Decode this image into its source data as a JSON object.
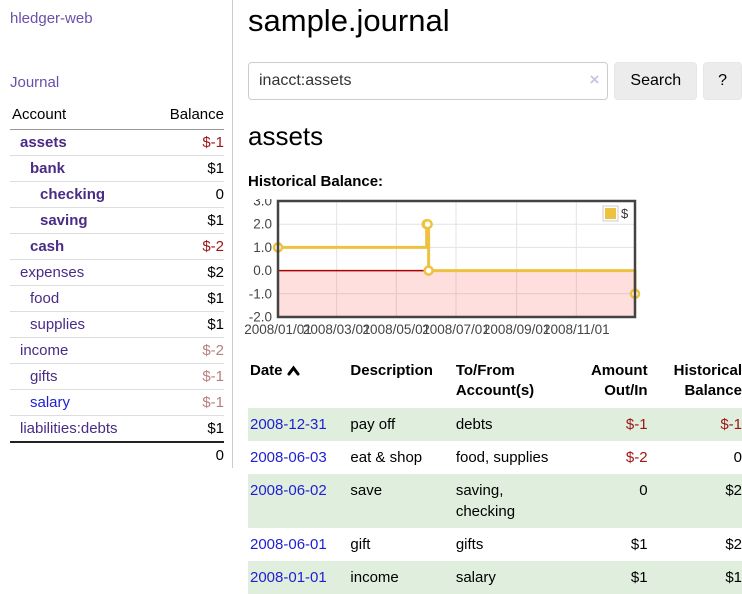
{
  "app": {
    "title": "hledger-web"
  },
  "sidebar": {
    "journal_link": "Journal",
    "accounts_table": {
      "header_account": "Account",
      "header_balance": "Balance",
      "rows": [
        {
          "account": "assets",
          "balance": "$-1",
          "depth": 1,
          "bold": true,
          "balance_style": "neg",
          "link_blue": false
        },
        {
          "account": "bank",
          "balance": "$1",
          "depth": 2,
          "bold": true,
          "balance_style": "",
          "link_blue": false
        },
        {
          "account": "checking",
          "balance": "0",
          "depth": 3,
          "bold": true,
          "balance_style": "",
          "link_blue": false
        },
        {
          "account": "saving",
          "balance": "$1",
          "depth": 3,
          "bold": true,
          "balance_style": "",
          "link_blue": false
        },
        {
          "account": "cash",
          "balance": "$-2",
          "depth": 2,
          "bold": true,
          "balance_style": "neg",
          "link_blue": false
        },
        {
          "account": "expenses",
          "balance": "$2",
          "depth": 1,
          "bold": false,
          "balance_style": "",
          "link_blue": false
        },
        {
          "account": "food",
          "balance": "$1",
          "depth": 2,
          "bold": false,
          "balance_style": "",
          "link_blue": false
        },
        {
          "account": "supplies",
          "balance": "$1",
          "depth": 2,
          "bold": false,
          "balance_style": "",
          "link_blue": false
        },
        {
          "account": "income",
          "balance": "$-2",
          "depth": 1,
          "bold": false,
          "balance_style": "negsoft",
          "link_blue": false
        },
        {
          "account": "gifts",
          "balance": "$-1",
          "depth": 2,
          "bold": false,
          "balance_style": "negsoft",
          "link_blue": false
        },
        {
          "account": "salary",
          "balance": "$-1",
          "depth": 2,
          "bold": false,
          "balance_style": "negsoft",
          "link_blue": true
        },
        {
          "account": "liabilities:debts",
          "balance": "$1",
          "depth": 1,
          "bold": false,
          "balance_style": "",
          "link_blue": false
        }
      ],
      "total": "0"
    }
  },
  "main": {
    "title": "sample.journal",
    "search": {
      "value": "inacct:assets",
      "clear_icon": "×",
      "button_label": "Search",
      "help_label": "?"
    },
    "account_heading": "assets",
    "chart_label": "Historical Balance:",
    "register": {
      "headers": {
        "date": "Date",
        "description": "Description",
        "accounts": "To/From Account(s)",
        "amount": "Amount Out/In",
        "balance": "Historical Balance"
      },
      "sort": {
        "column": "date",
        "direction": "ascending"
      },
      "rows": [
        {
          "date": "2008-12-31",
          "description": "pay off",
          "accounts": "debts",
          "amount": "$-1",
          "balance": "$-1"
        },
        {
          "date": "2008-06-03",
          "description": "eat & shop",
          "accounts": "food, supplies",
          "amount": "$-2",
          "balance": "0"
        },
        {
          "date": "2008-06-02",
          "description": "save",
          "accounts": "saving, checking",
          "amount": "0",
          "balance": "$2"
        },
        {
          "date": "2008-06-01",
          "description": "gift",
          "accounts": "gifts",
          "amount": "$1",
          "balance": "$2"
        },
        {
          "date": "2008-01-01",
          "description": "income",
          "accounts": "salary",
          "amount": "$1",
          "balance": "$1"
        }
      ]
    }
  },
  "chart_data": {
    "type": "line",
    "title": "Historical Balance",
    "steps": true,
    "series": [
      {
        "name": "$",
        "color": "#EDC240",
        "points": [
          [
            "2008-01-01",
            1
          ],
          [
            "2008-06-01",
            2
          ],
          [
            "2008-06-02",
            2
          ],
          [
            "2008-06-03",
            0
          ],
          [
            "2008-12-31",
            -1
          ]
        ]
      }
    ],
    "x_range": [
      "2008-01-01",
      "2008-12-31"
    ],
    "x_ticks": [
      "2008/01/01",
      "2008/03/01",
      "2008/05/01",
      "2008/07/01",
      "2008/09/01",
      "2008/11/01"
    ],
    "y_ticks": [
      3.0,
      2.0,
      1.0,
      0.0,
      -1.0,
      -2.0
    ],
    "ylim": [
      -2,
      3
    ],
    "grid": true,
    "legend_position": "top-right",
    "colors": {
      "grid_line": "#e3e3e3",
      "plot_border": "#434343",
      "zero_line": "#aa0000",
      "negative_region": "rgba(255,0,0,0.13)",
      "tick_label": "#444444",
      "marker_fill": "#ffffff"
    }
  },
  "colors": {
    "brand_link_purple": "#6b4fa8",
    "account_link_purple": "#4a2b85",
    "unvisited_link_blue": "#1f1fd1",
    "negative_amount": "#9d1414",
    "negative_amount_muted": "#b97f7f",
    "row_stripe_green": "#dfeedd",
    "chart_gold": "#EDC240"
  }
}
